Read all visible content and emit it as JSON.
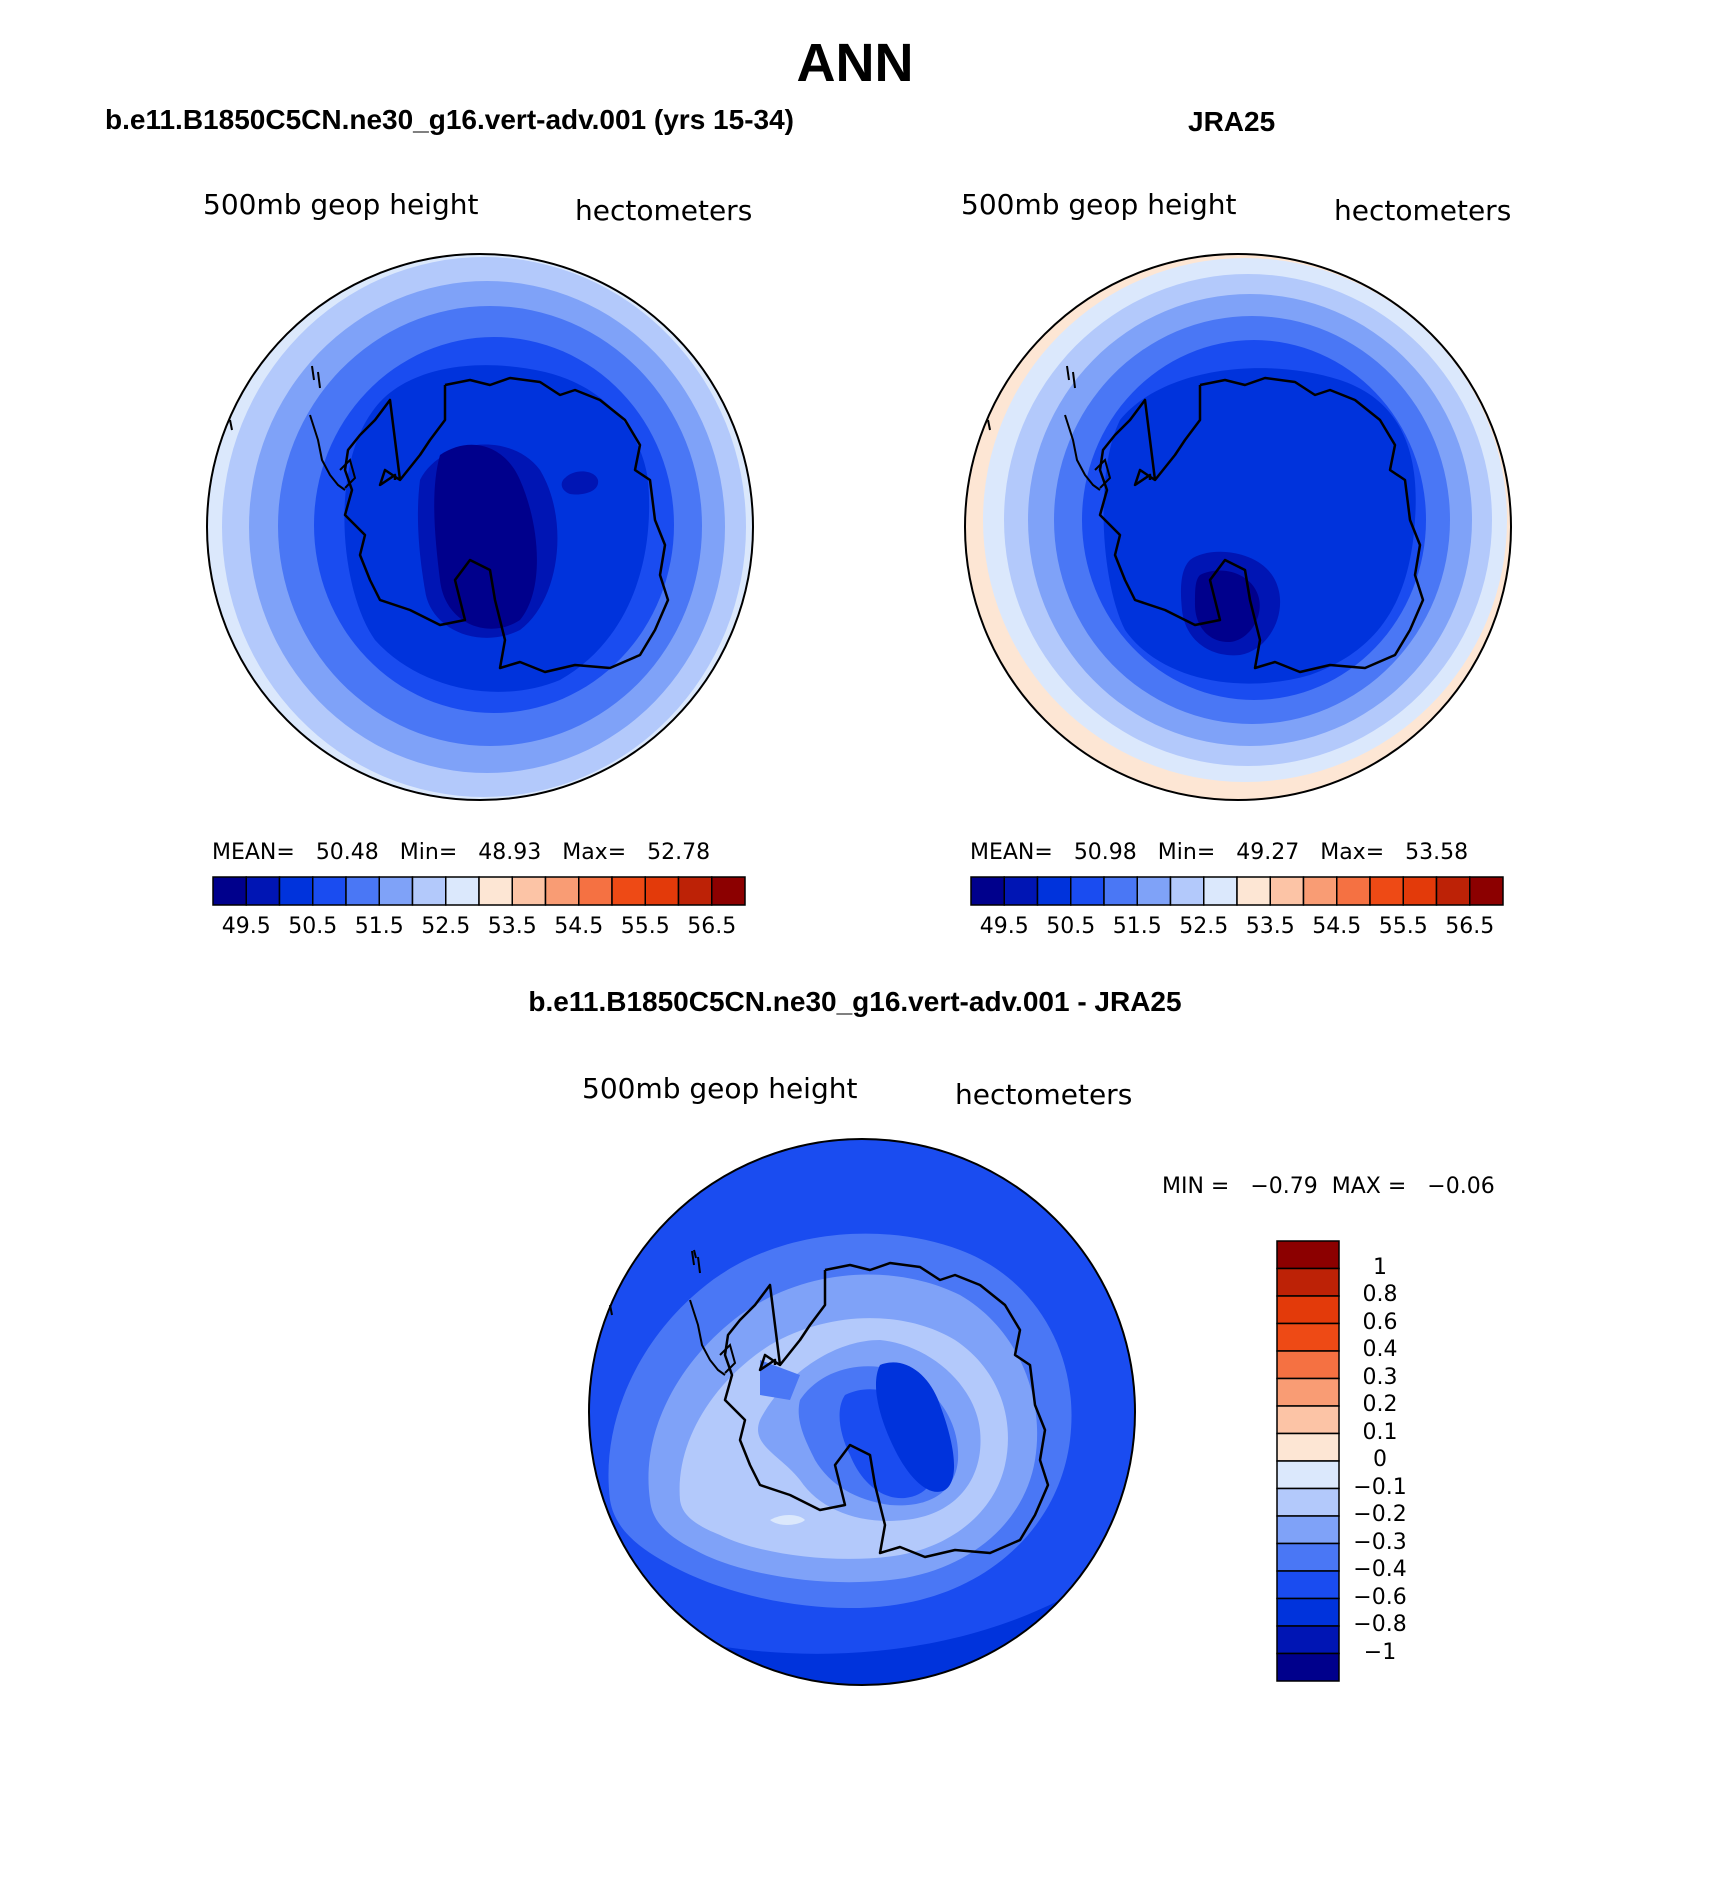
{
  "title": "ANN",
  "panels": [
    {
      "id": "model",
      "heading": "b.e11.B1850C5CN.ne30_g16.vert-adv.001 (yrs 15-34)",
      "field_label": "500mb geop height",
      "units_label": "hectometers",
      "stats": {
        "mean_label": "MEAN=",
        "mean": "50.48",
        "min_label": "Min=",
        "min": "48.93",
        "max_label": "Max=",
        "max": "52.78"
      }
    },
    {
      "id": "reanalysis",
      "heading": "JRA25",
      "field_label": "500mb geop height",
      "units_label": "hectometers",
      "stats": {
        "mean_label": "MEAN=",
        "mean": "50.98",
        "min_label": "Min=",
        "min": "49.27",
        "max_label": "Max=",
        "max": "53.58"
      }
    },
    {
      "id": "difference",
      "heading": "b.e11.B1850C5CN.ne30_g16.vert-adv.001 - JRA25",
      "field_label": "500mb geop height",
      "units_label": "hectometers",
      "stats": {
        "min_label": "MIN =",
        "min": "−0.79",
        "max_label": "MAX =",
        "max": "−0.06"
      }
    }
  ],
  "colorbar_abs": {
    "colors": [
      "#00008c",
      "#0015b4",
      "#0033dc",
      "#1a4cf0",
      "#4a77f5",
      "#7fa2f8",
      "#b3c9fb",
      "#dbe8fc",
      "#fde6d4",
      "#fcc4a6",
      "#f99c74",
      "#f57142",
      "#ee4a15",
      "#e33a0a",
      "#bd2206",
      "#8c0000"
    ],
    "tick_labels": [
      "49.5",
      "50.5",
      "51.5",
      "52.5",
      "53.5",
      "54.5",
      "55.5",
      "56.5"
    ]
  },
  "colorbar_diff": {
    "colors": [
      "#8c0000",
      "#bd2206",
      "#e33a0a",
      "#ee4a15",
      "#f57142",
      "#f99c74",
      "#fcc4a6",
      "#fde6d4",
      "#dbe8fc",
      "#b3c9fb",
      "#7fa2f8",
      "#4a77f5",
      "#1a4cf0",
      "#0033dc",
      "#0015b4",
      "#00008c"
    ],
    "tick_labels": [
      "1",
      "0.8",
      "0.6",
      "0.4",
      "0.3",
      "0.2",
      "0.1",
      "0",
      "−0.1",
      "−0.2",
      "−0.3",
      "−0.4",
      "−0.6",
      "−0.8",
      "−1"
    ]
  }
}
